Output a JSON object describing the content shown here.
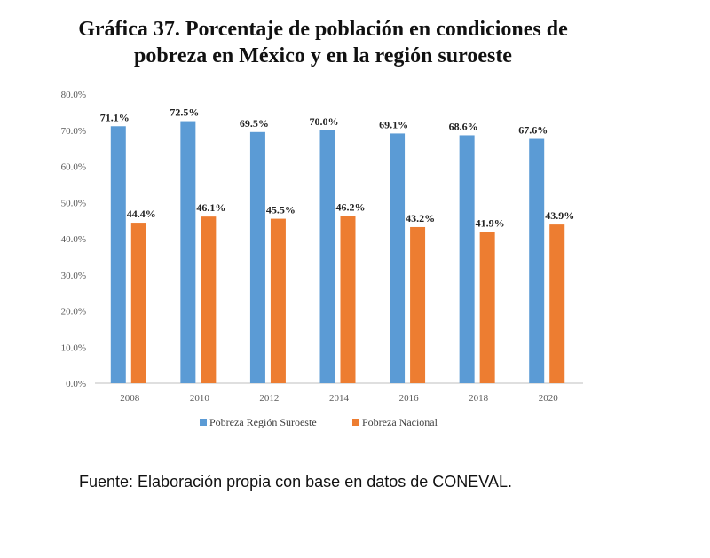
{
  "figure": {
    "title_line1": "Gráfica 37. Porcentaje de población en condiciones de",
    "title_line2": "pobreza en México y en la región suroeste",
    "source": "Fuente: Elaboración propia con base en datos de CONEVAL."
  },
  "chart_data": {
    "type": "bar",
    "title": "Gráfica 37. Porcentaje de población en condiciones de pobreza en México y en la región suroeste",
    "categories": [
      "2008",
      "2010",
      "2012",
      "2014",
      "2016",
      "2018",
      "2020"
    ],
    "series": [
      {
        "name": "Pobreza Región Suroeste",
        "values": [
          71.1,
          72.5,
          69.5,
          70.0,
          69.1,
          68.6,
          67.6
        ],
        "labels": [
          "71.1%",
          "72.5%",
          "69.5%",
          "70.0%",
          "69.1%",
          "68.6%",
          "67.6%"
        ],
        "color": "#5b9bd5"
      },
      {
        "name": "Pobreza Nacional",
        "values": [
          44.4,
          46.1,
          45.5,
          46.2,
          43.2,
          41.9,
          43.9
        ],
        "labels": [
          "44.4%",
          "46.1%",
          "45.5%",
          "46.2%",
          "43.2%",
          "41.9%",
          "43.9%"
        ],
        "color": "#ed7d31"
      }
    ],
    "ylim": [
      0,
      80
    ],
    "yticks": [
      "0.0%",
      "10.0%",
      "20.0%",
      "30.0%",
      "40.0%",
      "50.0%",
      "60.0%",
      "70.0%",
      "80.0%"
    ],
    "xlabel": "",
    "ylabel": "",
    "grid": false,
    "legend": "bottom"
  }
}
